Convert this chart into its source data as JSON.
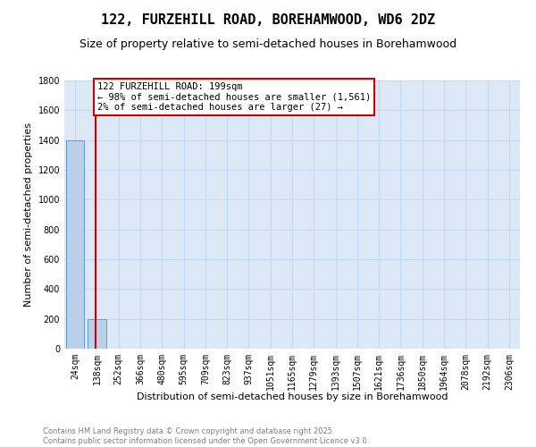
{
  "title1": "122, FURZEHILL ROAD, BOREHAMWOOD, WD6 2DZ",
  "title2": "Size of property relative to semi-detached houses in Borehamwood",
  "xlabel": "Distribution of semi-detached houses by size in Borehamwood",
  "ylabel": "Number of semi-detached properties",
  "categories": [
    "24sqm",
    "138sqm",
    "252sqm",
    "366sqm",
    "480sqm",
    "595sqm",
    "709sqm",
    "823sqm",
    "937sqm",
    "1051sqm",
    "1165sqm",
    "1279sqm",
    "1393sqm",
    "1507sqm",
    "1621sqm",
    "1736sqm",
    "1850sqm",
    "1964sqm",
    "2078sqm",
    "2192sqm",
    "2306sqm"
  ],
  "values": [
    1400,
    200,
    0,
    0,
    0,
    0,
    0,
    0,
    0,
    0,
    0,
    0,
    0,
    0,
    0,
    0,
    0,
    0,
    0,
    0,
    0
  ],
  "bar_color": "#b8d0e8",
  "bar_edge_color": "#6699cc",
  "vline_x": 0.96,
  "vline_color": "#cc0000",
  "annotation_text": "122 FURZEHILL ROAD: 199sqm\n← 98% of semi-detached houses are smaller (1,561)\n2% of semi-detached houses are larger (27) →",
  "annotation_box_color": "#cc0000",
  "annotation_facecolor": "white",
  "ylim": [
    0,
    1800
  ],
  "yticks": [
    0,
    200,
    400,
    600,
    800,
    1000,
    1200,
    1400,
    1600,
    1800
  ],
  "bg_color": "#dce8f5",
  "grid_color": "#c5d8ed",
  "footer": "Contains HM Land Registry data © Crown copyright and database right 2025.\nContains public sector information licensed under the Open Government Licence v3.0.",
  "title1_fontsize": 11,
  "title2_fontsize": 9,
  "xlabel_fontsize": 8,
  "ylabel_fontsize": 8,
  "tick_fontsize": 7,
  "annotation_fontsize": 7.5,
  "footer_fontsize": 6
}
